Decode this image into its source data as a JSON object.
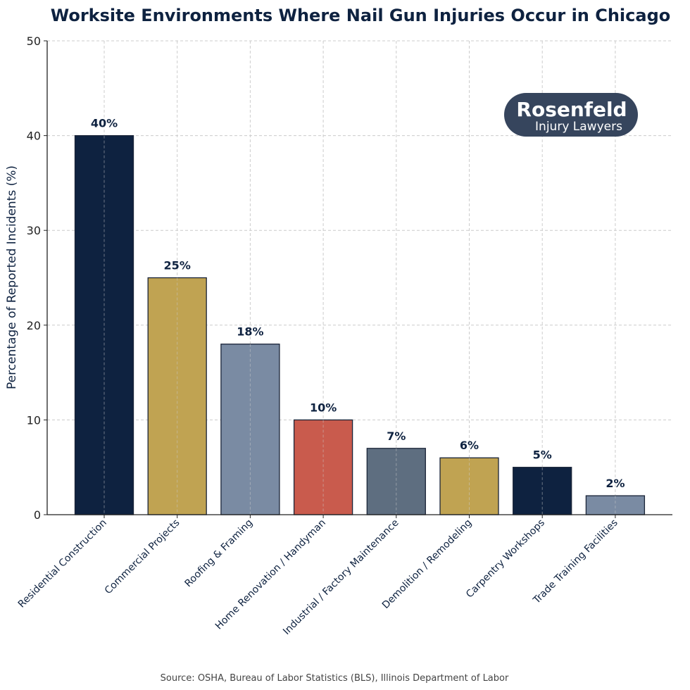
{
  "chart_data": {
    "type": "bar",
    "title": "Worksite Environments Where Nail Gun Injuries Occur in Chicago",
    "xlabel": "",
    "ylabel": "Percentage of Reported Incidents (%)",
    "ylim": [
      0,
      50
    ],
    "yticks": [
      0,
      10,
      20,
      30,
      40,
      50
    ],
    "grid": true,
    "categories": [
      "Residential Construction",
      "Commercial Projects",
      "Roofing & Framing",
      "Home Renovation / Handyman",
      "Industrial / Factory Maintenance",
      "Demolition / Remodeling",
      "Carpentry Workshops",
      "Trade Training Facilities"
    ],
    "values": [
      40,
      25,
      18,
      10,
      7,
      6,
      5,
      2
    ],
    "data_labels": [
      "40%",
      "25%",
      "18%",
      "10%",
      "7%",
      "6%",
      "5%",
      "2%"
    ],
    "colors": [
      "#0e2240",
      "#c0a352",
      "#7a8ba3",
      "#c95b4d",
      "#5e6e80",
      "#c0a352",
      "#0e2240",
      "#7a8ba3"
    ],
    "source": "Source: OSHA, Bureau of Labor Statistics (BLS), Illinois Department of Labor"
  },
  "logo": {
    "line1": "Rosenfeld",
    "line2": "Injury Lawyers",
    "color": "#36455d"
  }
}
